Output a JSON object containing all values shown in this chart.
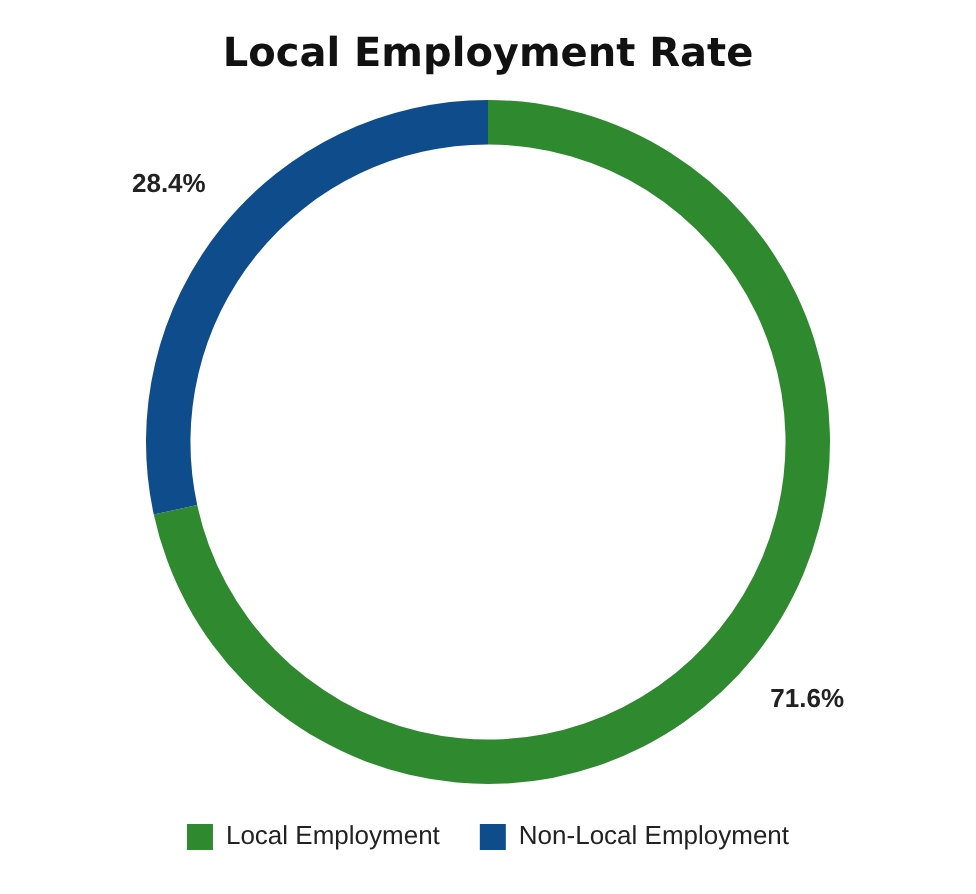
{
  "chart_data": {
    "type": "donut",
    "title": "Local Employment Rate",
    "categories": [
      "Local Employment",
      "Non-Local Employment"
    ],
    "values": [
      71.6,
      28.4
    ],
    "colors": [
      "#2f8a2f",
      "#0f4c8c"
    ],
    "value_labels": [
      "71.6%",
      "28.4%"
    ],
    "legend": "bottom"
  }
}
